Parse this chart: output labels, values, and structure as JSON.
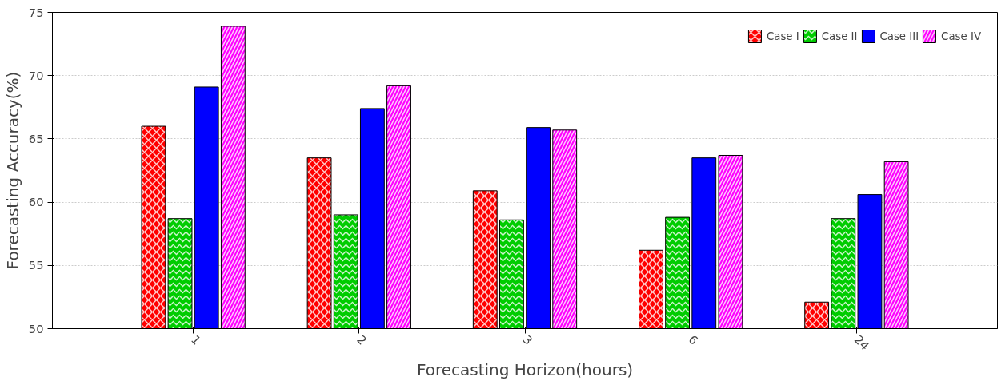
{
  "chart_data": {
    "type": "bar",
    "xlabel": "Forecasting Horizon(hours)",
    "ylabel": "Forecasting Accuracy(%)",
    "categories": [
      "1",
      "2",
      "3",
      "6",
      "24"
    ],
    "series": [
      {
        "name": "Case I",
        "color": "#ff0000",
        "values": [
          66.0,
          63.5,
          60.9,
          56.2,
          52.1
        ]
      },
      {
        "name": "Case II",
        "color": "#00cc00",
        "values": [
          58.7,
          59.0,
          58.6,
          58.8,
          58.7
        ]
      },
      {
        "name": "Case III",
        "color": "#0000ff",
        "values": [
          69.1,
          67.4,
          65.9,
          63.5,
          60.6
        ]
      },
      {
        "name": "Case IV",
        "color": "#ff00ff",
        "values": [
          73.9,
          69.2,
          65.7,
          63.7,
          63.2
        ]
      }
    ],
    "ylim": [
      50,
      75
    ],
    "yticks": [
      50,
      55,
      60,
      65,
      70,
      75
    ],
    "grid": "y",
    "legend": "top right"
  }
}
